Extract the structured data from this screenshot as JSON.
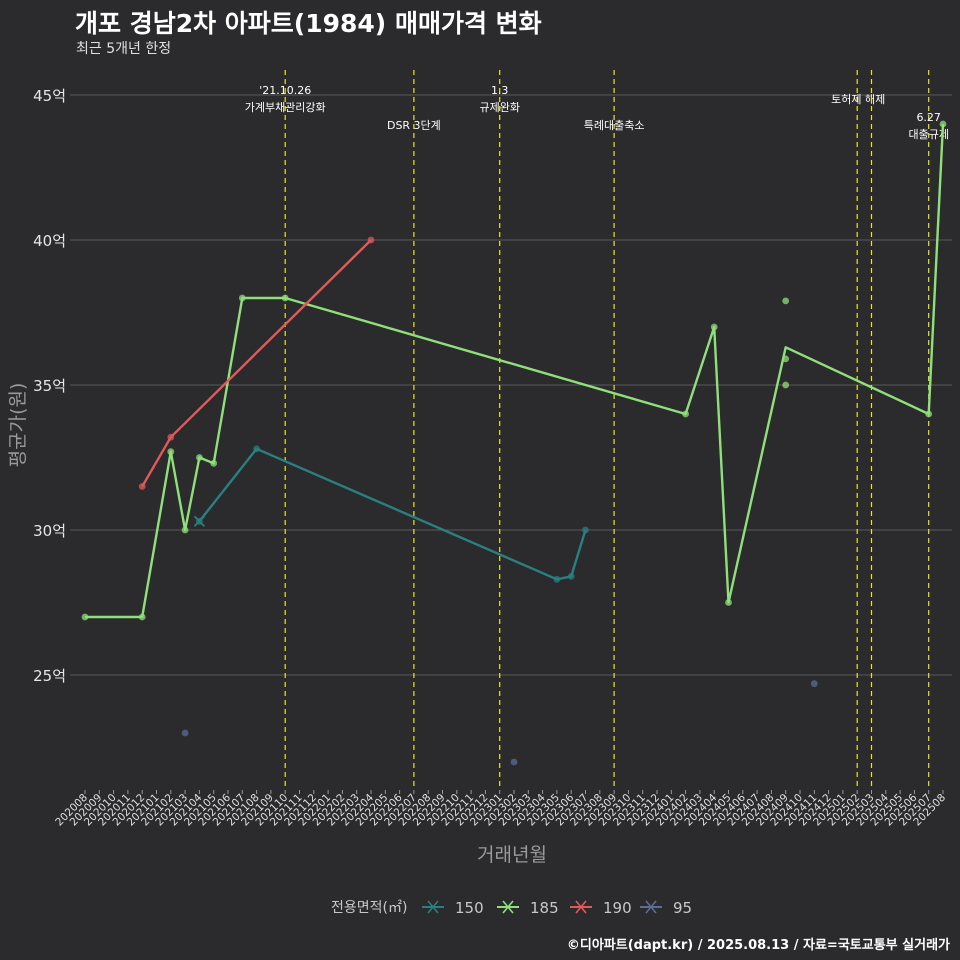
{
  "header": {
    "title": "개포 경남2차 아파트(1984) 매매가격 변화",
    "subtitle": "최근 5개년 한정"
  },
  "footer": {
    "caption": "©디아파트(dapt.kr) / 2025.08.13 / 자료=국토교통부 실거래가"
  },
  "colors": {
    "background": "#2b2a2c",
    "grid": "#5a5a5c",
    "event_line": "#e6e62a",
    "s150": "#2a8080",
    "s185": "#8fe07a",
    "s190": "#e05a5a",
    "s95": "#5a6e96"
  },
  "chart_data": {
    "type": "line",
    "title": "개포 경남2차 아파트(1984) 매매가격 변화",
    "xlabel": "거래년월",
    "ylabel": "평균가(원)",
    "ylim": [
      20.9,
      45.9
    ],
    "yticks": [
      25,
      30,
      35,
      40,
      45
    ],
    "ytick_labels": [
      "25억",
      "30억",
      "35억",
      "40억",
      "45억"
    ],
    "x_months": [
      "202008",
      "202009",
      "202010",
      "202011",
      "202012",
      "202101",
      "202102",
      "202103",
      "202104",
      "202105",
      "202106",
      "202107",
      "202108",
      "202109",
      "202110",
      "202111",
      "202112",
      "202201",
      "202202",
      "202203",
      "202204",
      "202205",
      "202206",
      "202207",
      "202208",
      "202209",
      "202210",
      "202211",
      "202212",
      "202301",
      "202302",
      "202303",
      "202304",
      "202305",
      "202306",
      "202307",
      "202308",
      "202309",
      "202310",
      "202311",
      "202312",
      "202401",
      "202402",
      "202403",
      "202404",
      "202405",
      "202406",
      "202407",
      "202408",
      "202409",
      "202410",
      "202411",
      "202412",
      "202501",
      "202502",
      "202503",
      "202504",
      "202505",
      "202506",
      "202507",
      "202508"
    ],
    "legend_title": "전용면적(㎡)",
    "legend_position": "bottom",
    "series": [
      {
        "name": "150",
        "color_key": "s150",
        "points": [
          {
            "x": "202104",
            "y": 30.3
          },
          {
            "x": "202108",
            "y": 32.8
          },
          {
            "x": "202305",
            "y": 28.3
          },
          {
            "x": "202306",
            "y": 28.4
          },
          {
            "x": "202307",
            "y": 30.0
          }
        ],
        "scatter": [
          {
            "x": "202104",
            "y": 30.3
          },
          {
            "x": "202108",
            "y": 32.8
          },
          {
            "x": "202305",
            "y": 28.3
          },
          {
            "x": "202306",
            "y": 28.4
          },
          {
            "x": "202307",
            "y": 30.0
          }
        ]
      },
      {
        "name": "185",
        "color_key": "s185",
        "points": [
          {
            "x": "202008",
            "y": 27.0
          },
          {
            "x": "202012",
            "y": 27.0
          },
          {
            "x": "202102",
            "y": 32.7
          },
          {
            "x": "202103",
            "y": 30.0
          },
          {
            "x": "202104",
            "y": 32.5
          },
          {
            "x": "202105",
            "y": 32.3
          },
          {
            "x": "202107",
            "y": 38.0
          },
          {
            "x": "202110",
            "y": 38.0
          },
          {
            "x": "202402",
            "y": 34.0
          },
          {
            "x": "202404",
            "y": 37.0
          },
          {
            "x": "202405",
            "y": 27.5
          },
          {
            "x": "202409",
            "y": 36.3
          },
          {
            "x": "202507",
            "y": 34.0
          },
          {
            "x": "202508",
            "y": 44.0
          }
        ],
        "scatter": [
          {
            "x": "202008",
            "y": 27.0
          },
          {
            "x": "202012",
            "y": 27.0
          },
          {
            "x": "202102",
            "y": 32.7
          },
          {
            "x": "202103",
            "y": 30.0
          },
          {
            "x": "202104",
            "y": 32.5
          },
          {
            "x": "202105",
            "y": 32.3
          },
          {
            "x": "202107",
            "y": 38.0
          },
          {
            "x": "202110",
            "y": 38.0
          },
          {
            "x": "202402",
            "y": 34.0
          },
          {
            "x": "202404",
            "y": 37.0
          },
          {
            "x": "202405",
            "y": 27.5
          },
          {
            "x": "202409",
            "y": 37.9
          },
          {
            "x": "202409",
            "y": 35.9
          },
          {
            "x": "202409",
            "y": 35.0
          },
          {
            "x": "202507",
            "y": 34.0
          },
          {
            "x": "202508",
            "y": 44.0
          }
        ]
      },
      {
        "name": "190",
        "color_key": "s190",
        "points": [
          {
            "x": "202012",
            "y": 31.5
          },
          {
            "x": "202102",
            "y": 33.2
          },
          {
            "x": "202204",
            "y": 40.0
          }
        ],
        "scatter": [
          {
            "x": "202012",
            "y": 31.5
          },
          {
            "x": "202102",
            "y": 33.2
          },
          {
            "x": "202204",
            "y": 40.0
          }
        ]
      },
      {
        "name": "95",
        "color_key": "s95",
        "points": [],
        "scatter": [
          {
            "x": "202103",
            "y": 23.0
          },
          {
            "x": "202302",
            "y": 22.0
          },
          {
            "x": "202411",
            "y": 24.7
          }
        ]
      }
    ],
    "events": [
      {
        "x": "202110",
        "lines": [
          "'21.10.26",
          "가계부채관리강화"
        ],
        "level": "top"
      },
      {
        "x": "202207",
        "lines": [
          "DSR 3단계"
        ],
        "level": "low"
      },
      {
        "x": "202301",
        "lines": [
          "1.3",
          "규제완화"
        ],
        "level": "top"
      },
      {
        "x": "202309",
        "lines": [
          "특례대출축소"
        ],
        "level": "low"
      },
      {
        "x": "202502",
        "lines": [
          "토허제 해제"
        ],
        "level": "mid"
      },
      {
        "x": "202503",
        "lines": [],
        "level": "none"
      },
      {
        "x": "202507",
        "lines": [
          "6.27",
          "대출규제"
        ],
        "level": "right"
      }
    ]
  }
}
